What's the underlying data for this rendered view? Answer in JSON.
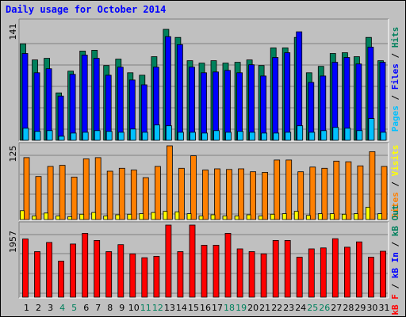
{
  "chart_data": [
    {
      "type": "bar",
      "panel": "pages-files-hits",
      "title": "Daily usage for October 2014",
      "ymax_label": "141",
      "ylim": [
        0,
        141
      ],
      "grid": true,
      "categories": [
        "1",
        "2",
        "3",
        "4",
        "5",
        "6",
        "7",
        "8",
        "9",
        "10",
        "11",
        "12",
        "13",
        "14",
        "15",
        "16",
        "17",
        "18",
        "19",
        "20",
        "21",
        "22",
        "23",
        "24",
        "25",
        "26",
        "27",
        "28",
        "29",
        "30",
        "31"
      ],
      "weekend_days": [
        "4",
        "5",
        "11",
        "12",
        "18",
        "19",
        "25",
        "26"
      ],
      "series": [
        {
          "name": "Hits",
          "color": "#00805c",
          "values": [
            120,
            100,
            102,
            59,
            86,
            111,
            112,
            93,
            101,
            84,
            81,
            104,
            138,
            128,
            99,
            96,
            99,
            96,
            97,
            100,
            93,
            115,
            115,
            128,
            84,
            92,
            108,
            109,
            104,
            128,
            99
          ]
        },
        {
          "name": "Files",
          "color": "#0000ff",
          "values": [
            108,
            84,
            89,
            55,
            82,
            106,
            102,
            81,
            91,
            75,
            69,
            91,
            129,
            119,
            91,
            84,
            85,
            87,
            84,
            94,
            80,
            103,
            109,
            135,
            72,
            80,
            97,
            103,
            95,
            116,
            97
          ]
        },
        {
          "name": "Pages",
          "color": "#00c0ff",
          "values": [
            15,
            11,
            12,
            5,
            9,
            10,
            12,
            11,
            10,
            14,
            10,
            19,
            18,
            10,
            10,
            9,
            12,
            10,
            11,
            10,
            9,
            9,
            10,
            18,
            10,
            12,
            16,
            15,
            12,
            27,
            10
          ]
        }
      ],
      "axis_labels": {
        "pages": "Pages",
        "files": "Files",
        "hits": "Hits",
        "sep": " / "
      }
    },
    {
      "type": "bar",
      "panel": "sites-visits",
      "ymax_label": "125",
      "ylim": [
        0,
        125
      ],
      "grid": true,
      "series": [
        {
          "name": "Sites",
          "color": "#ff8000",
          "values": [
            105,
            73,
            90,
            92,
            72,
            103,
            105,
            82,
            87,
            84,
            71,
            90,
            125,
            87,
            108,
            84,
            86,
            85,
            86,
            81,
            80,
            101,
            101,
            81,
            89,
            87,
            99,
            98,
            91,
            115,
            90
          ]
        },
        {
          "name": "Visits",
          "color": "#ffff00",
          "values": [
            15,
            6,
            11,
            6,
            5,
            9,
            12,
            6,
            8,
            9,
            10,
            12,
            14,
            13,
            10,
            6,
            8,
            6,
            6,
            8,
            6,
            9,
            10,
            14,
            7,
            10,
            10,
            9,
            10,
            21,
            10
          ]
        }
      ],
      "axis_labels": {
        "sites": "Sites",
        "visits": "Visits",
        "sep": " / "
      }
    },
    {
      "type": "bar",
      "panel": "kb-out-in-f",
      "ymax_label": "1957",
      "ylim": [
        0,
        1957
      ],
      "grid": true,
      "series": [
        {
          "name": "KB F",
          "color": "#ff0000",
          "values": [
            1580,
            1237,
            1486,
            979,
            1444,
            1733,
            1540,
            1237,
            1426,
            1176,
            1070,
            1110,
            1957,
            1237,
            1957,
            1410,
            1410,
            1733,
            1312,
            1237,
            1176,
            1540,
            1540,
            1085,
            1312,
            1337,
            1588,
            1358,
            1502,
            1085,
            1248
          ]
        }
      ],
      "axis_labels": {
        "kbf": "kB F",
        "kbin": "kB In",
        "kbout": "kB Out",
        "sep": " / "
      }
    }
  ],
  "colors": {
    "frame": "#c0c0c0",
    "panel": "#c0c0c0",
    "grid": "#808080",
    "title": "#0000ff",
    "weekday_tick": "#000000",
    "weekend_tick": "#00805c",
    "ymax_label": "#000000"
  }
}
